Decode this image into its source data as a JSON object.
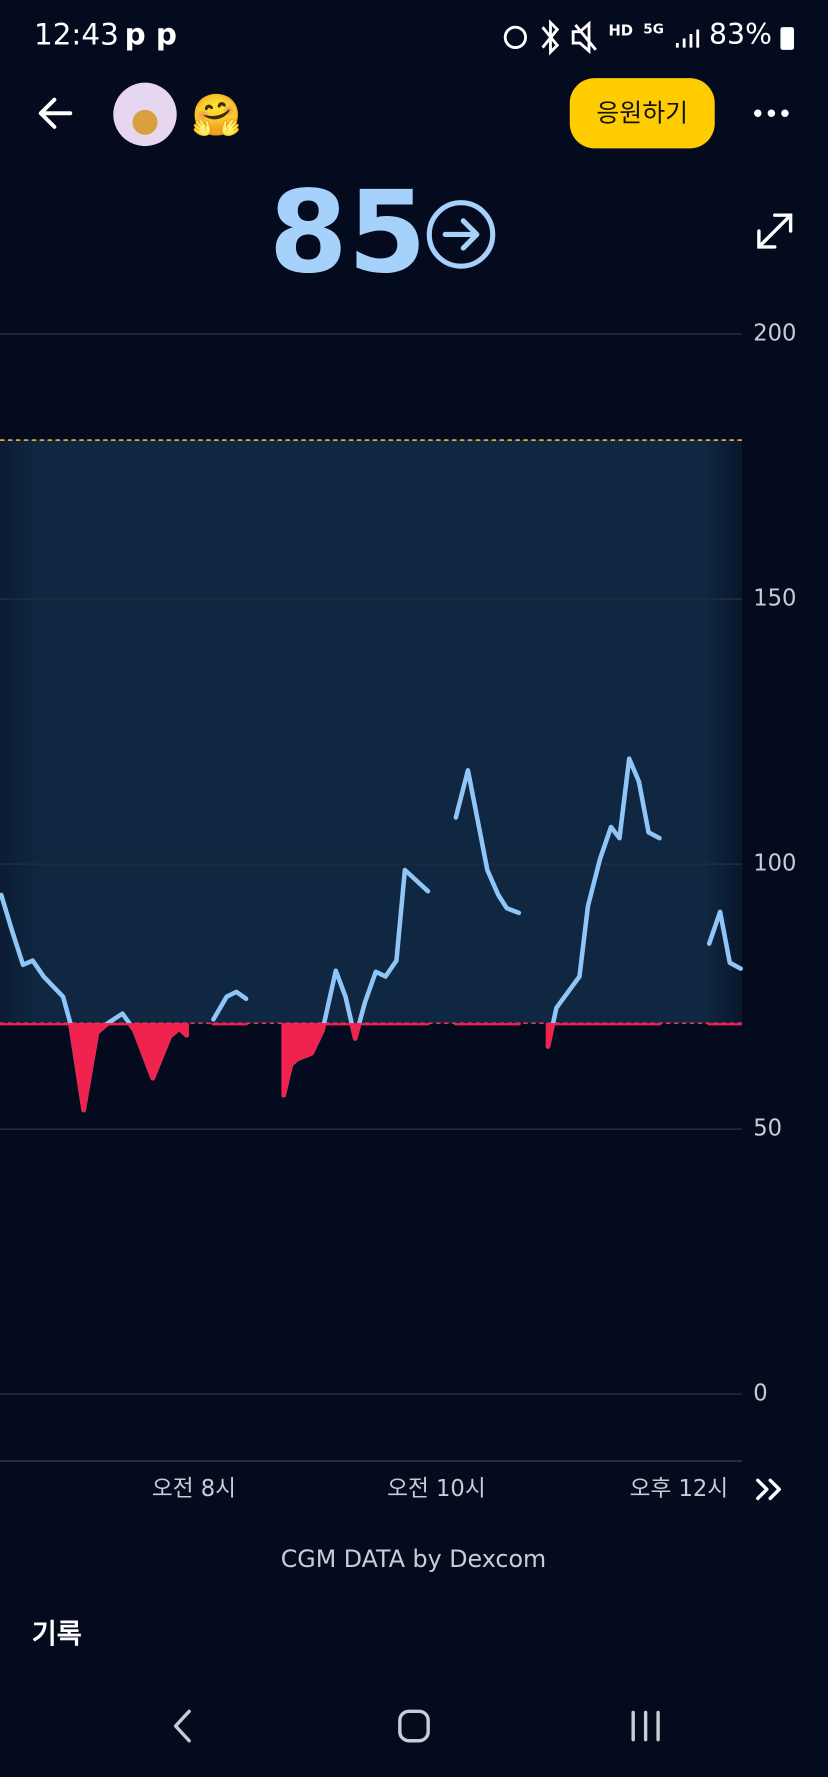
{
  "status_bar": {
    "time": "12:43",
    "notifications": "p p",
    "hd": "HD",
    "net": "5G",
    "battery": "83%"
  },
  "header": {
    "emoji": "🤗",
    "cheer_button": "응원하기"
  },
  "current_value": 85,
  "chart_data": {
    "type": "line",
    "color": "#90c6f7",
    "low_color": "#f0234f",
    "target_range": [
      70,
      180
    ],
    "xlim": [
      6.4,
      12.52
    ],
    "ylim": [
      0,
      200
    ],
    "yticks": [
      0,
      50,
      100,
      150,
      200
    ],
    "xticks": [
      {
        "value": 8,
        "label": "오전 8시"
      },
      {
        "value": 10,
        "label": "오전 10시"
      },
      {
        "value": 12,
        "label": "오후 12시"
      }
    ],
    "grid": true,
    "x": [
      6.41,
      6.5,
      6.59,
      6.67,
      6.76,
      6.92,
      6.98,
      7.09,
      7.2,
      7.29,
      7.41,
      7.51,
      7.66,
      7.8,
      7.88,
      7.94,
      null,
      8.16,
      8.27,
      8.35,
      8.43,
      null,
      8.74,
      8.8,
      8.85,
      8.97,
      9.06,
      9.17,
      9.25,
      9.33,
      9.41,
      9.5,
      9.58,
      9.67,
      9.74,
      9.93,
      null,
      10.16,
      10.26,
      10.42,
      10.51,
      10.58,
      10.68,
      null,
      10.92,
      10.99,
      11.18,
      11.25,
      11.35,
      11.44,
      11.51,
      11.59,
      11.67,
      11.75,
      11.84,
      null,
      12.25,
      12.34,
      12.42,
      12.51
    ],
    "values": [
      94.2,
      87.4,
      81,
      81.8,
      78.8,
      75,
      70,
      53.6,
      68.2,
      70,
      71.8,
      68.6,
      59.6,
      67.5,
      69,
      67.7,
      null,
      70.7,
      75,
      75.9,
      74.6,
      null,
      56.4,
      62.2,
      63.2,
      64.3,
      68.6,
      79.9,
      75,
      67.1,
      73.9,
      79.7,
      78.8,
      81.8,
      98.9,
      94.9,
      null,
      108.8,
      117.7,
      98.9,
      94.2,
      91.7,
      90.8,
      null,
      65.6,
      72.9,
      78.8,
      92.1,
      101,
      107,
      104.9,
      119.9,
      115.6,
      106,
      104.9,
      null,
      85,
      91,
      81.4,
      80.3
    ]
  },
  "footer": {
    "source": "CGM DATA by Dexcom",
    "section": "기록"
  }
}
